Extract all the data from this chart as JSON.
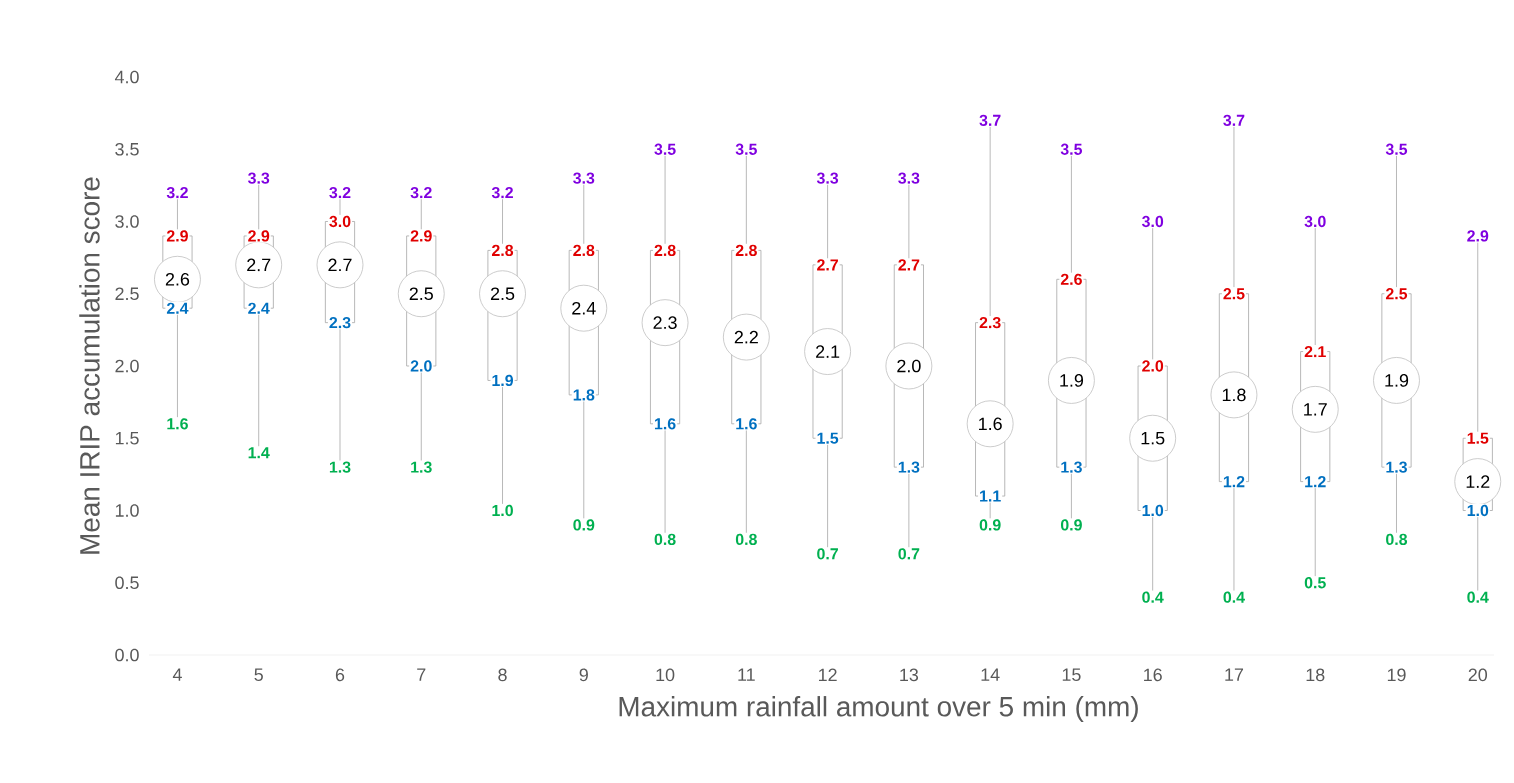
{
  "chart_data": {
    "type": "box",
    "xlabel": "Maximum rainfall amount over 5 min (mm)",
    "ylabel": "Mean IRIP accumulation score",
    "categories": [
      "4",
      "5",
      "6",
      "7",
      "8",
      "9",
      "10",
      "11",
      "12",
      "13",
      "14",
      "15",
      "16",
      "17",
      "18",
      "19",
      "20"
    ],
    "boxes": [
      {
        "low": 1.6,
        "q1": 2.4,
        "median": 2.6,
        "q3": 2.9,
        "high": 3.2
      },
      {
        "low": 1.4,
        "q1": 2.4,
        "median": 2.7,
        "q3": 2.9,
        "high": 3.3
      },
      {
        "low": 1.3,
        "q1": 2.3,
        "median": 2.7,
        "q3": 3.0,
        "high": 3.2
      },
      {
        "low": 1.3,
        "q1": 2.0,
        "median": 2.5,
        "q3": 2.9,
        "high": 3.2
      },
      {
        "low": 1.0,
        "q1": 1.9,
        "median": 2.5,
        "q3": 2.8,
        "high": 3.2
      },
      {
        "low": 0.9,
        "q1": 1.8,
        "median": 2.4,
        "q3": 2.8,
        "high": 3.3
      },
      {
        "low": 0.8,
        "q1": 1.6,
        "median": 2.3,
        "q3": 2.8,
        "high": 3.5
      },
      {
        "low": 0.8,
        "q1": 1.6,
        "median": 2.2,
        "q3": 2.8,
        "high": 3.5
      },
      {
        "low": 0.7,
        "q1": 1.5,
        "median": 2.1,
        "q3": 2.7,
        "high": 3.3
      },
      {
        "low": 0.7,
        "q1": 1.3,
        "median": 2.0,
        "q3": 2.7,
        "high": 3.3
      },
      {
        "low": 0.9,
        "q1": 1.1,
        "median": 1.6,
        "q3": 2.3,
        "high": 3.7
      },
      {
        "low": 0.9,
        "q1": 1.3,
        "median": 1.9,
        "q3": 2.6,
        "high": 3.5
      },
      {
        "low": 0.4,
        "q1": 1.0,
        "median": 1.5,
        "q3": 2.0,
        "high": 3.0
      },
      {
        "low": 0.4,
        "q1": 1.2,
        "median": 1.8,
        "q3": 2.5,
        "high": 3.7
      },
      {
        "low": 0.5,
        "q1": 1.2,
        "median": 1.7,
        "q3": 2.1,
        "high": 3.0
      },
      {
        "low": 0.8,
        "q1": 1.3,
        "median": 1.9,
        "q3": 2.5,
        "high": 3.5
      },
      {
        "low": 0.4,
        "q1": 1.0,
        "median": 1.2,
        "q3": 1.5,
        "high": 2.9
      }
    ],
    "annotations": [
      {
        "text": "3.2",
        "x": "4",
        "y": 3.2
      },
      {
        "text": "2.9",
        "x": "4",
        "y": 2.9
      },
      {
        "text": "2.6",
        "x": "4",
        "y": 2.6
      },
      {
        "text": "2.4",
        "x": "4",
        "y": 2.4
      },
      {
        "text": "1.6",
        "x": "4",
        "y": 1.6
      },
      {
        "text": "3.3",
        "x": "5",
        "y": 3.3
      },
      {
        "text": "2.9",
        "x": "5",
        "y": 2.9
      },
      {
        "text": "2.7",
        "x": "5",
        "y": 2.7
      },
      {
        "text": "2.4",
        "x": "5",
        "y": 2.4
      },
      {
        "text": "1.4",
        "x": "5",
        "y": 1.4
      },
      {
        "text": "3.2",
        "x": "6",
        "y": 3.2
      },
      {
        "text": "3.0",
        "x": "6",
        "y": 3.0
      },
      {
        "text": "2.7",
        "x": "6",
        "y": 2.7
      },
      {
        "text": "2.3",
        "x": "6",
        "y": 2.3
      },
      {
        "text": "1.3",
        "x": "6",
        "y": 1.3
      },
      {
        "text": "3.2",
        "x": "7",
        "y": 3.2
      },
      {
        "text": "2.9",
        "x": "7",
        "y": 2.9
      },
      {
        "text": "2.5",
        "x": "7",
        "y": 2.5
      },
      {
        "text": "2.0",
        "x": "7",
        "y": 2.0
      },
      {
        "text": "1.3",
        "x": "7",
        "y": 1.3
      },
      {
        "text": "3.2",
        "x": "8",
        "y": 3.2
      },
      {
        "text": "2.8",
        "x": "8",
        "y": 2.8
      },
      {
        "text": "2.5",
        "x": "8",
        "y": 2.5
      },
      {
        "text": "1.9",
        "x": "8",
        "y": 1.9
      },
      {
        "text": "1.0",
        "x": "8",
        "y": 1.0
      },
      {
        "text": "3.3",
        "x": "9",
        "y": 3.3
      },
      {
        "text": "2.8",
        "x": "9",
        "y": 2.8
      },
      {
        "text": "2.4",
        "x": "9",
        "y": 2.4
      },
      {
        "text": "1.8",
        "x": "9",
        "y": 1.8
      },
      {
        "text": "0.9",
        "x": "9",
        "y": 0.9
      },
      {
        "text": "3.5",
        "x": "10",
        "y": 3.5
      },
      {
        "text": "2.8",
        "x": "10",
        "y": 2.8
      },
      {
        "text": "2.3",
        "x": "10",
        "y": 2.3
      },
      {
        "text": "1.6",
        "x": "10",
        "y": 1.6
      },
      {
        "text": "0.8",
        "x": "10",
        "y": 0.8
      },
      {
        "text": "3.5",
        "x": "11",
        "y": 3.5
      },
      {
        "text": "2.8",
        "x": "11",
        "y": 2.8
      },
      {
        "text": "2.2",
        "x": "11",
        "y": 2.2
      },
      {
        "text": "1.6",
        "x": "11",
        "y": 1.6
      },
      {
        "text": "0.8",
        "x": "11",
        "y": 0.8
      },
      {
        "text": "3.3",
        "x": "12",
        "y": 3.3
      },
      {
        "text": "2.7",
        "x": "12",
        "y": 2.7
      },
      {
        "text": "2.1",
        "x": "12",
        "y": 2.1
      },
      {
        "text": "1.5",
        "x": "12",
        "y": 1.5
      },
      {
        "text": "0.7",
        "x": "12",
        "y": 0.7
      },
      {
        "text": "3.3",
        "x": "13",
        "y": 3.3
      },
      {
        "text": "2.7",
        "x": "13",
        "y": 2.7
      },
      {
        "text": "2.0",
        "x": "13",
        "y": 2.0
      },
      {
        "text": "1.3",
        "x": "13",
        "y": 1.3
      },
      {
        "text": "0.7",
        "x": "13",
        "y": 0.7
      },
      {
        "text": "3.7",
        "x": "14",
        "y": 3.7
      },
      {
        "text": "2.3",
        "x": "14",
        "y": 2.3
      },
      {
        "text": "1.6",
        "x": "14",
        "y": 1.6
      },
      {
        "text": "1.1",
        "x": "14",
        "y": 1.1
      },
      {
        "text": "0.9",
        "x": "14",
        "y": 0.9
      },
      {
        "text": "3.5",
        "x": "15",
        "y": 3.5
      },
      {
        "text": "2.6",
        "x": "15",
        "y": 2.6
      },
      {
        "text": "1.9",
        "x": "15",
        "y": 1.9
      },
      {
        "text": "1.3",
        "x": "15",
        "y": 1.3
      },
      {
        "text": "0.9",
        "x": "15",
        "y": 0.9
      },
      {
        "text": "3.0",
        "x": "16",
        "y": 3.0
      },
      {
        "text": "2.0",
        "x": "16",
        "y": 2.0
      },
      {
        "text": "1.5",
        "x": "16",
        "y": 1.5
      },
      {
        "text": "1.0",
        "x": "16",
        "y": 1.0
      },
      {
        "text": "0.4",
        "x": "16",
        "y": 0.4
      },
      {
        "text": "3.7",
        "x": "17",
        "y": 3.7
      },
      {
        "text": "2.5",
        "x": "17",
        "y": 2.5
      },
      {
        "text": "1.8",
        "x": "17",
        "y": 1.8
      },
      {
        "text": "1.2",
        "x": "17",
        "y": 1.2
      },
      {
        "text": "0.4",
        "x": "17",
        "y": 0.4
      },
      {
        "text": "3.0",
        "x": "18",
        "y": 3.0
      },
      {
        "text": "2.1",
        "x": "18",
        "y": 2.1
      },
      {
        "text": "1.7",
        "x": "18",
        "y": 1.7
      },
      {
        "text": "1.2",
        "x": "18",
        "y": 1.2
      },
      {
        "text": "0.5",
        "x": "18",
        "y": 0.5
      },
      {
        "text": "3.5",
        "x": "19",
        "y": 3.5
      },
      {
        "text": "2.5",
        "x": "19",
        "y": 2.5
      },
      {
        "text": "1.9",
        "x": "19",
        "y": 1.9
      },
      {
        "text": "1.3",
        "x": "19",
        "y": 1.3
      },
      {
        "text": "0.8",
        "x": "19",
        "y": 0.8
      },
      {
        "text": "2.9",
        "x": "20",
        "y": 2.9
      },
      {
        "text": "1.5",
        "x": "20",
        "y": 1.5
      },
      {
        "text": "1.2",
        "x": "20",
        "y": 1.2
      },
      {
        "text": "1.0",
        "x": "20",
        "y": 1.0
      },
      {
        "text": "0.4",
        "x": "20",
        "y": 0.4
      }
    ],
    "ylim": [
      0,
      4
    ],
    "yticks": [
      {
        "value": 0,
        "label": "0.0"
      },
      {
        "value": 0.5,
        "label": "0.5"
      },
      {
        "value": 1,
        "label": "1.0"
      },
      {
        "value": 1.5,
        "label": "1.5"
      },
      {
        "value": 2,
        "label": "2.0"
      },
      {
        "value": 2.5,
        "label": "2.5"
      },
      {
        "value": 3,
        "label": "3.0"
      },
      {
        "value": 3.5,
        "label": "3.5"
      },
      {
        "value": 4,
        "label": "4.0"
      }
    ]
  }
}
